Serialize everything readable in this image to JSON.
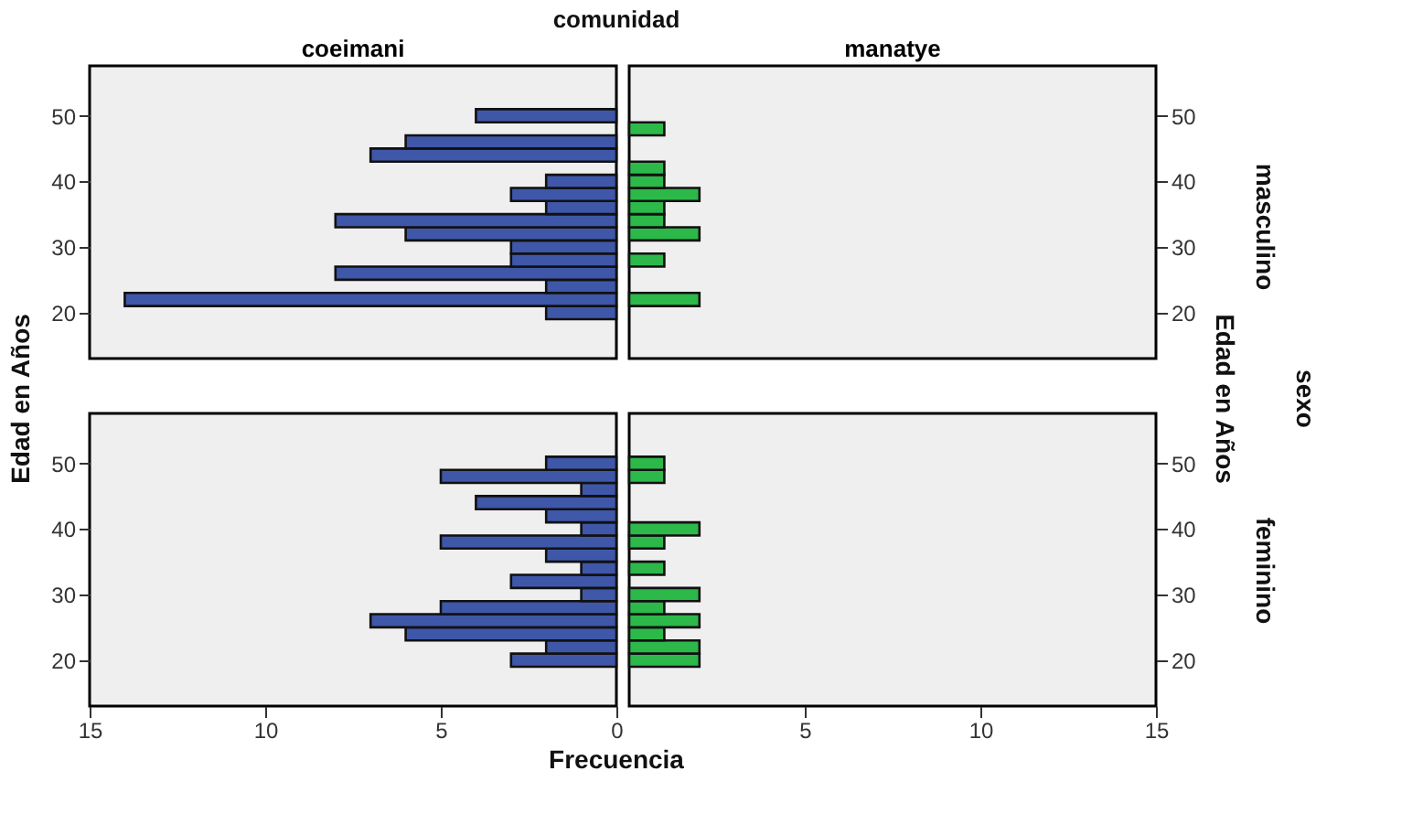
{
  "chart_data": [
    {
      "type": "histogram",
      "orientation": "horizontal",
      "title": "coeimani",
      "ylabel": "Edad en Años",
      "annotations": [
        "comunidad"
      ],
      "xlim": [
        15,
        0
      ],
      "xticks": [
        15,
        10,
        5,
        0
      ],
      "ylim": [
        13,
        57.6
      ],
      "yticks": [
        20,
        30,
        40,
        50
      ],
      "tick_labels": "y",
      "bins": [
        19,
        21,
        23,
        25,
        27,
        29,
        31,
        33,
        35,
        37,
        39,
        41,
        43,
        45,
        47,
        49,
        51
      ],
      "color": "#3f57a8",
      "values": [
        2,
        14,
        2,
        8,
        3,
        3,
        6,
        8,
        2,
        3,
        2,
        0,
        7,
        6,
        0,
        4
      ]
    },
    {
      "type": "histogram",
      "orientation": "horizontal",
      "title": "manatye",
      "ylabel": "Edad en Años",
      "annotations": [
        "masculino",
        "sexo"
      ],
      "xlim": [
        0,
        15
      ],
      "xticks": [
        5,
        10,
        15
      ],
      "ylim": [
        13,
        57.6
      ],
      "yticks": [
        20,
        30,
        40,
        50
      ],
      "tick_labels": "y",
      "bins": [
        19,
        21,
        23,
        25,
        27,
        29,
        31,
        33,
        35,
        37,
        39,
        41,
        43,
        45,
        47,
        49,
        51
      ],
      "color": "#2db84a",
      "values": [
        0,
        2,
        0,
        0,
        1,
        0,
        2,
        1,
        1,
        2,
        1,
        1,
        0,
        0,
        1,
        0
      ]
    },
    {
      "type": "histogram",
      "orientation": "horizontal",
      "xlabel": "Frecuencia",
      "xlim": [
        15,
        0
      ],
      "xticks": [
        15,
        10,
        5,
        0
      ],
      "ylim": [
        13,
        57.6
      ],
      "yticks": [
        20,
        30,
        40,
        50
      ],
      "bins": [
        19,
        21,
        23,
        25,
        27,
        29,
        31,
        33,
        35,
        37,
        39,
        41,
        43,
        45,
        47,
        49,
        51
      ],
      "color": "#3f57a8",
      "values": [
        3,
        2,
        6,
        7,
        5,
        1,
        3,
        1,
        2,
        5,
        1,
        2,
        4,
        1,
        5,
        2
      ]
    },
    {
      "type": "histogram",
      "orientation": "horizontal",
      "annotations": [
        "feminino"
      ],
      "xlim": [
        0,
        15
      ],
      "xticks": [
        5,
        10,
        15
      ],
      "ylim": [
        13,
        57.6
      ],
      "yticks": [
        20,
        30,
        40,
        50
      ],
      "bins": [
        19,
        21,
        23,
        25,
        27,
        29,
        31,
        33,
        35,
        37,
        39,
        41,
        43,
        45,
        47,
        49,
        51
      ],
      "color": "#2db84a",
      "values": [
        2,
        2,
        1,
        2,
        1,
        2,
        0,
        1,
        0,
        1,
        2,
        0,
        0,
        0,
        1,
        1
      ]
    }
  ]
}
